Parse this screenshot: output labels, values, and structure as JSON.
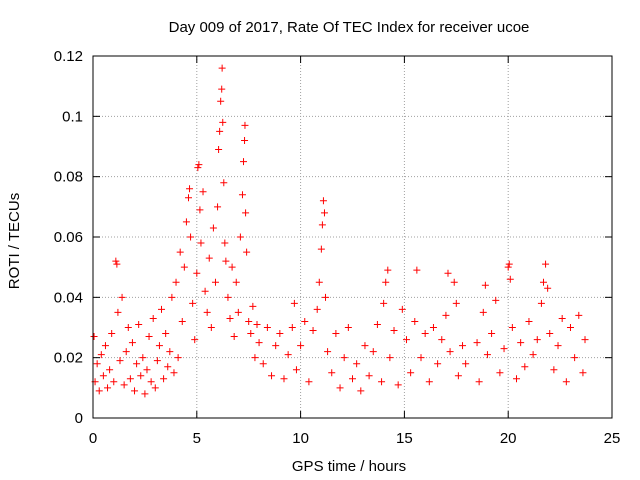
{
  "chart_data": {
    "type": "scatter",
    "title": "Day 009 of 2017, Rate Of TEC Index for receiver ucoe",
    "xlabel": "GPS time / hours",
    "ylabel": "ROTI / TECUs",
    "xlim": [
      0,
      25
    ],
    "ylim": [
      0,
      0.12
    ],
    "x_ticks": [
      "0",
      "5",
      "10",
      "15",
      "20",
      "25"
    ],
    "y_ticks": [
      "0",
      "0.02",
      "0.04",
      "0.06",
      "0.08",
      "0.1",
      "0.12"
    ],
    "x_tick_values": [
      0,
      5,
      10,
      15,
      20,
      25
    ],
    "y_tick_values": [
      0,
      0.02,
      0.04,
      0.06,
      0.08,
      0.1,
      0.12
    ],
    "grid": true,
    "marker": "+",
    "colors": {
      "series": "#ff0000",
      "grid": "#a0a0a0"
    },
    "series": [
      {
        "points": [
          [
            0.05,
            0.027
          ],
          [
            0.1,
            0.012
          ],
          [
            0.2,
            0.018
          ],
          [
            0.3,
            0.009
          ],
          [
            0.4,
            0.021
          ],
          [
            0.5,
            0.014
          ],
          [
            0.6,
            0.024
          ],
          [
            0.7,
            0.01
          ],
          [
            0.8,
            0.016
          ],
          [
            0.9,
            0.028
          ],
          [
            1.0,
            0.012
          ],
          [
            1.1,
            0.052
          ],
          [
            1.15,
            0.051
          ],
          [
            1.2,
            0.035
          ],
          [
            1.3,
            0.019
          ],
          [
            1.4,
            0.04
          ],
          [
            1.5,
            0.011
          ],
          [
            1.6,
            0.022
          ],
          [
            1.7,
            0.03
          ],
          [
            1.8,
            0.013
          ],
          [
            1.9,
            0.025
          ],
          [
            2.0,
            0.009
          ],
          [
            2.1,
            0.018
          ],
          [
            2.2,
            0.031
          ],
          [
            2.3,
            0.014
          ],
          [
            2.4,
            0.02
          ],
          [
            2.5,
            0.008
          ],
          [
            2.6,
            0.016
          ],
          [
            2.7,
            0.027
          ],
          [
            2.8,
            0.012
          ],
          [
            2.9,
            0.033
          ],
          [
            3.0,
            0.01
          ],
          [
            3.1,
            0.019
          ],
          [
            3.2,
            0.024
          ],
          [
            3.3,
            0.036
          ],
          [
            3.4,
            0.013
          ],
          [
            3.5,
            0.028
          ],
          [
            3.6,
            0.017
          ],
          [
            3.7,
            0.022
          ],
          [
            3.8,
            0.04
          ],
          [
            3.9,
            0.015
          ],
          [
            4.0,
            0.045
          ],
          [
            4.1,
            0.02
          ],
          [
            4.2,
            0.055
          ],
          [
            4.3,
            0.032
          ],
          [
            4.4,
            0.05
          ],
          [
            4.5,
            0.065
          ],
          [
            4.6,
            0.073
          ],
          [
            4.65,
            0.076
          ],
          [
            4.7,
            0.06
          ],
          [
            4.8,
            0.038
          ],
          [
            4.9,
            0.026
          ],
          [
            5.0,
            0.048
          ],
          [
            5.05,
            0.083
          ],
          [
            5.1,
            0.084
          ],
          [
            5.15,
            0.069
          ],
          [
            5.2,
            0.058
          ],
          [
            5.3,
            0.075
          ],
          [
            5.4,
            0.042
          ],
          [
            5.5,
            0.035
          ],
          [
            5.6,
            0.053
          ],
          [
            5.7,
            0.03
          ],
          [
            5.8,
            0.063
          ],
          [
            5.9,
            0.045
          ],
          [
            6.0,
            0.07
          ],
          [
            6.05,
            0.089
          ],
          [
            6.1,
            0.095
          ],
          [
            6.15,
            0.105
          ],
          [
            6.2,
            0.109
          ],
          [
            6.22,
            0.116
          ],
          [
            6.25,
            0.098
          ],
          [
            6.3,
            0.078
          ],
          [
            6.35,
            0.058
          ],
          [
            6.4,
            0.052
          ],
          [
            6.5,
            0.04
          ],
          [
            6.6,
            0.033
          ],
          [
            6.7,
            0.05
          ],
          [
            6.8,
            0.027
          ],
          [
            6.9,
            0.045
          ],
          [
            7.0,
            0.035
          ],
          [
            7.1,
            0.06
          ],
          [
            7.2,
            0.074
          ],
          [
            7.25,
            0.085
          ],
          [
            7.3,
            0.092
          ],
          [
            7.32,
            0.097
          ],
          [
            7.35,
            0.068
          ],
          [
            7.4,
            0.055
          ],
          [
            7.5,
            0.032
          ],
          [
            7.6,
            0.028
          ],
          [
            7.7,
            0.037
          ],
          [
            7.8,
            0.02
          ],
          [
            7.9,
            0.031
          ],
          [
            8.0,
            0.025
          ],
          [
            8.2,
            0.018
          ],
          [
            8.4,
            0.03
          ],
          [
            8.6,
            0.014
          ],
          [
            8.8,
            0.024
          ],
          [
            9.0,
            0.028
          ],
          [
            9.2,
            0.013
          ],
          [
            9.4,
            0.021
          ],
          [
            9.6,
            0.03
          ],
          [
            9.7,
            0.038
          ],
          [
            9.8,
            0.016
          ],
          [
            10.0,
            0.024
          ],
          [
            10.2,
            0.032
          ],
          [
            10.4,
            0.012
          ],
          [
            10.6,
            0.029
          ],
          [
            10.8,
            0.036
          ],
          [
            10.9,
            0.045
          ],
          [
            11.0,
            0.056
          ],
          [
            11.05,
            0.064
          ],
          [
            11.1,
            0.072
          ],
          [
            11.15,
            0.068
          ],
          [
            11.2,
            0.04
          ],
          [
            11.3,
            0.022
          ],
          [
            11.5,
            0.015
          ],
          [
            11.7,
            0.028
          ],
          [
            11.9,
            0.01
          ],
          [
            12.1,
            0.02
          ],
          [
            12.3,
            0.03
          ],
          [
            12.5,
            0.013
          ],
          [
            12.7,
            0.018
          ],
          [
            12.9,
            0.009
          ],
          [
            13.1,
            0.024
          ],
          [
            13.3,
            0.014
          ],
          [
            13.5,
            0.022
          ],
          [
            13.7,
            0.031
          ],
          [
            13.9,
            0.012
          ],
          [
            14.0,
            0.038
          ],
          [
            14.1,
            0.045
          ],
          [
            14.2,
            0.049
          ],
          [
            14.3,
            0.02
          ],
          [
            14.5,
            0.029
          ],
          [
            14.7,
            0.011
          ],
          [
            14.9,
            0.036
          ],
          [
            15.1,
            0.026
          ],
          [
            15.3,
            0.015
          ],
          [
            15.5,
            0.032
          ],
          [
            15.6,
            0.049
          ],
          [
            15.8,
            0.02
          ],
          [
            16.0,
            0.028
          ],
          [
            16.2,
            0.012
          ],
          [
            16.4,
            0.03
          ],
          [
            16.6,
            0.018
          ],
          [
            16.8,
            0.026
          ],
          [
            17.0,
            0.034
          ],
          [
            17.1,
            0.048
          ],
          [
            17.2,
            0.022
          ],
          [
            17.4,
            0.045
          ],
          [
            17.5,
            0.038
          ],
          [
            17.6,
            0.014
          ],
          [
            17.8,
            0.024
          ],
          [
            17.95,
            0.018
          ],
          [
            18.5,
            0.025
          ],
          [
            18.6,
            0.012
          ],
          [
            18.8,
            0.035
          ],
          [
            18.9,
            0.044
          ],
          [
            19.0,
            0.021
          ],
          [
            19.2,
            0.028
          ],
          [
            19.4,
            0.039
          ],
          [
            19.6,
            0.015
          ],
          [
            19.8,
            0.023
          ],
          [
            20.0,
            0.05
          ],
          [
            20.05,
            0.051
          ],
          [
            20.1,
            0.046
          ],
          [
            20.2,
            0.03
          ],
          [
            20.4,
            0.013
          ],
          [
            20.6,
            0.025
          ],
          [
            20.8,
            0.017
          ],
          [
            21.0,
            0.032
          ],
          [
            21.2,
            0.021
          ],
          [
            21.4,
            0.026
          ],
          [
            21.6,
            0.038
          ],
          [
            21.7,
            0.045
          ],
          [
            21.8,
            0.051
          ],
          [
            21.9,
            0.043
          ],
          [
            22.0,
            0.028
          ],
          [
            22.2,
            0.016
          ],
          [
            22.4,
            0.024
          ],
          [
            22.6,
            0.033
          ],
          [
            22.8,
            0.012
          ],
          [
            23.0,
            0.03
          ],
          [
            23.2,
            0.02
          ],
          [
            23.4,
            0.034
          ],
          [
            23.6,
            0.015
          ],
          [
            23.7,
            0.026
          ]
        ]
      }
    ]
  }
}
